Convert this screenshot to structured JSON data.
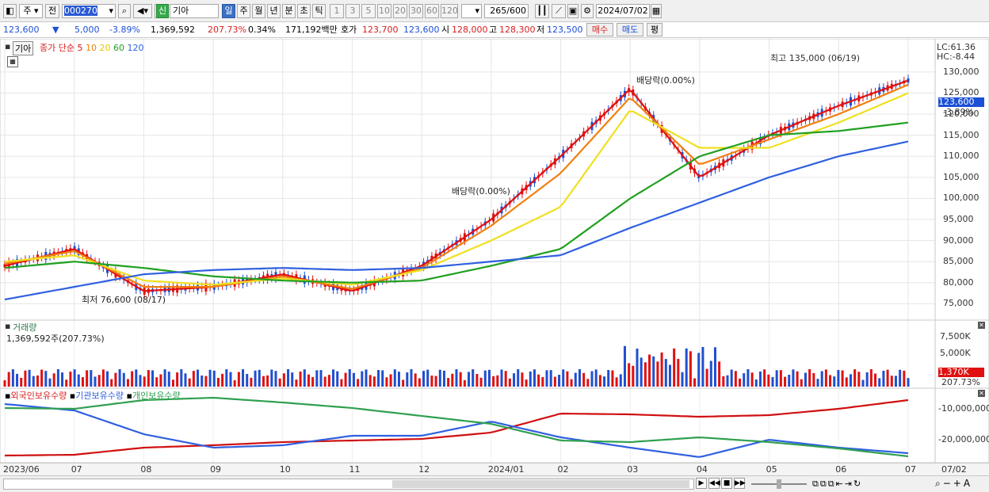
{
  "toolbar": {
    "period_week": "주",
    "prev_label": "전",
    "stock_code": "000270",
    "stock_badge": "신",
    "stock_name": "기아",
    "tabs": [
      "일",
      "주",
      "월",
      "년",
      "분",
      "초",
      "틱"
    ],
    "selected_tab": "일",
    "intervals": [
      "1",
      "3",
      "5",
      "10",
      "20",
      "30",
      "60",
      "120"
    ],
    "count": "265",
    "count_total": "/600",
    "date": "2024/07/02"
  },
  "info": {
    "price": "123,600",
    "change_arrow": "▼",
    "change": "5,000",
    "change_pct": "-3.89%",
    "volume": "1,369,592",
    "volume_ratio": "207.73%",
    "turnover": "0.34%",
    "amount": "171,192백만",
    "quote_label": "호가",
    "ask": "123,700",
    "bid": "123,600",
    "open_label": "시",
    "open": "128,000",
    "high_label": "고",
    "high": "128,300",
    "low_label": "저",
    "low": "123,500",
    "buy_btn": "매수",
    "sell_btn": "매도",
    "eval_btn": "평"
  },
  "price_pane": {
    "name": "기아",
    "legend_close": "종가 단순",
    "ma_periods": [
      "5",
      "10",
      "20",
      "60",
      "120"
    ],
    "lc": "LC:61.36",
    "hc": "HC:-8.44",
    "y_ticks": [
      "130,000",
      "125,000",
      "120,000",
      "115,000",
      "110,000",
      "105,000",
      "100,000",
      "95,000",
      "90,000",
      "85,000",
      "80,000",
      "75,000"
    ],
    "current_price_tag": "123,600",
    "current_change_tag": "-3.89%",
    "high_annotation": "최고 135,000 (06/19)",
    "low_annotation": "최저 76,600 (08/17)",
    "dividend_annotation_1": "배당락(0.00%)",
    "dividend_annotation_2": "배당락(0.00%)"
  },
  "volume_pane": {
    "title": "거래량",
    "value": "1,369,592주(207.73%)",
    "y_ticks": [
      "7,500K",
      "5,000K"
    ],
    "tag": "1,370K",
    "tag2": "207.73%"
  },
  "holdings_pane": {
    "legend": [
      "외국인보유수량",
      "기관보유수량",
      "개인보유수량"
    ],
    "y_ticks": [
      "-10,000,000",
      "-20,000,000"
    ]
  },
  "x_axis": {
    "labels": [
      "2023/06",
      "07",
      "08",
      "09",
      "10",
      "11",
      "12",
      "2024/01",
      "02",
      "03",
      "04",
      "05",
      "06",
      "07"
    ],
    "end_label": "07/02"
  },
  "colors": {
    "ma5": "#e01010",
    "ma10": "#f08010",
    "ma20": "#f0e020",
    "ma60": "#20a020",
    "ma120": "#3060e0",
    "up": "#e01010",
    "down": "#1f4fd0",
    "foreign": "#d01010",
    "institution": "#3060e0",
    "individual": "#30a050"
  },
  "chart_data": {
    "type": "line",
    "title": "",
    "ylabel": "",
    "xlabel": "",
    "ylim": [
      73000,
      136000
    ],
    "x": [
      "2023/06",
      "07",
      "08",
      "09",
      "10",
      "11",
      "12",
      "2024/01",
      "02",
      "03",
      "04",
      "05",
      "06",
      "07"
    ],
    "series": [
      {
        "name": "5",
        "values": [
          84000,
          88000,
          78000,
          79000,
          82000,
          78000,
          84000,
          95000,
          110000,
          126000,
          105000,
          115000,
          122000,
          128000
        ]
      },
      {
        "name": "10",
        "values": [
          84500,
          87500,
          79000,
          79000,
          81500,
          78500,
          83500,
          93500,
          106000,
          124000,
          108000,
          114000,
          120000,
          127000
        ]
      },
      {
        "name": "20",
        "values": [
          85000,
          86500,
          80500,
          79500,
          81000,
          79500,
          83000,
          90000,
          98000,
          121000,
          112000,
          112000,
          118000,
          125000
        ]
      },
      {
        "name": "60",
        "values": [
          83500,
          85000,
          83500,
          81500,
          80500,
          80000,
          80500,
          84000,
          88000,
          100000,
          110000,
          115000,
          116000,
          118000
        ]
      },
      {
        "name": "120",
        "values": [
          76000,
          79000,
          82000,
          83000,
          83500,
          83000,
          83500,
          85000,
          86500,
          93000,
          99000,
          105000,
          110000,
          113500
        ]
      }
    ],
    "annotations": [
      "최고 135,000 (06/19)",
      "최저 76,600 (08/17)",
      "배당락(0.00%)"
    ]
  }
}
